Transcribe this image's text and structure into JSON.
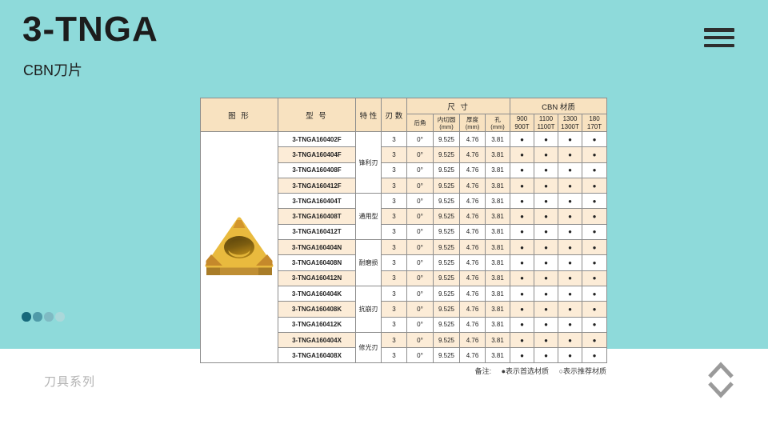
{
  "slide": {
    "title": "3-TNGA",
    "subtitle": "CBN刀片",
    "footer_label": "刀具系列"
  },
  "colors": {
    "background_teal": "#8edada",
    "table_header_bg": "#f8e2c0",
    "table_stripe_bg": "#fcecd7",
    "insert_gold": "#e9ba3e",
    "dot_colors": [
      "#17697b",
      "#4f9aa8",
      "#7fbac3",
      "#abd8da"
    ]
  },
  "pagination": {
    "count": 4,
    "active_index": 0
  },
  "note": {
    "prefix": "备注:",
    "preferred": "●表示首选材质",
    "recommended": "○表示推荐材质"
  },
  "table": {
    "header": {
      "figure": "图  形",
      "model": "型  号",
      "feature": "特 性",
      "edges": "刃 数",
      "dims_group": "尺  寸",
      "cbn_group": "CBN 材质",
      "dims": [
        "后角",
        "内切圆\n(mm)",
        "厚度\n(mm)",
        "孔\n(mm)"
      ],
      "cbn": [
        "900\n900T",
        "1100\n1100T",
        "1300\n1300T",
        "180\n170T"
      ]
    },
    "rows": [
      {
        "model": "3-TNGA160402F",
        "feature": "锋利刃",
        "edges": "3",
        "rear_angle": "0°",
        "inscribed_circle": "9.525",
        "thickness": "4.76",
        "hole": "3.81",
        "cbn": [
          "●",
          "●",
          "●",
          "●"
        ]
      },
      {
        "model": "3-TNGA160404F",
        "feature": "锋利刃",
        "edges": "3",
        "rear_angle": "0°",
        "inscribed_circle": "9.525",
        "thickness": "4.76",
        "hole": "3.81",
        "cbn": [
          "●",
          "●",
          "●",
          "●"
        ]
      },
      {
        "model": "3-TNGA160408F",
        "feature": "锋利刃",
        "edges": "3",
        "rear_angle": "0°",
        "inscribed_circle": "9.525",
        "thickness": "4.76",
        "hole": "3.81",
        "cbn": [
          "●",
          "●",
          "●",
          "●"
        ]
      },
      {
        "model": "3-TNGA160412F",
        "feature": "锋利刃",
        "edges": "3",
        "rear_angle": "0°",
        "inscribed_circle": "9.525",
        "thickness": "4.76",
        "hole": "3.81",
        "cbn": [
          "●",
          "●",
          "●",
          "●"
        ]
      },
      {
        "model": "3-TNGA160404T",
        "feature": "通用型",
        "edges": "3",
        "rear_angle": "0°",
        "inscribed_circle": "9.525",
        "thickness": "4.76",
        "hole": "3.81",
        "cbn": [
          "●",
          "●",
          "●",
          "●"
        ]
      },
      {
        "model": "3-TNGA160408T",
        "feature": "通用型",
        "edges": "3",
        "rear_angle": "0°",
        "inscribed_circle": "9.525",
        "thickness": "4.76",
        "hole": "3.81",
        "cbn": [
          "●",
          "●",
          "●",
          "●"
        ]
      },
      {
        "model": "3-TNGA160412T",
        "feature": "通用型",
        "edges": "3",
        "rear_angle": "0°",
        "inscribed_circle": "9.525",
        "thickness": "4.76",
        "hole": "3.81",
        "cbn": [
          "●",
          "●",
          "●",
          "●"
        ]
      },
      {
        "model": "3-TNGA160404N",
        "feature": "耐磨损",
        "edges": "3",
        "rear_angle": "0°",
        "inscribed_circle": "9.525",
        "thickness": "4.76",
        "hole": "3.81",
        "cbn": [
          "●",
          "●",
          "●",
          "●"
        ]
      },
      {
        "model": "3-TNGA160408N",
        "feature": "耐磨损",
        "edges": "3",
        "rear_angle": "0°",
        "inscribed_circle": "9.525",
        "thickness": "4.76",
        "hole": "3.81",
        "cbn": [
          "●",
          "●",
          "●",
          "●"
        ]
      },
      {
        "model": "3-TNGA160412N",
        "feature": "耐磨损",
        "edges": "3",
        "rear_angle": "0°",
        "inscribed_circle": "9.525",
        "thickness": "4.76",
        "hole": "3.81",
        "cbn": [
          "●",
          "●",
          "●",
          "●"
        ]
      },
      {
        "model": "3-TNGA160404K",
        "feature": "抗崩刃",
        "edges": "3",
        "rear_angle": "0°",
        "inscribed_circle": "9.525",
        "thickness": "4.76",
        "hole": "3.81",
        "cbn": [
          "●",
          "●",
          "●",
          "●"
        ]
      },
      {
        "model": "3-TNGA160408K",
        "feature": "抗崩刃",
        "edges": "3",
        "rear_angle": "0°",
        "inscribed_circle": "9.525",
        "thickness": "4.76",
        "hole": "3.81",
        "cbn": [
          "●",
          "●",
          "●",
          "●"
        ]
      },
      {
        "model": "3-TNGA160412K",
        "feature": "抗崩刃",
        "edges": "3",
        "rear_angle": "0°",
        "inscribed_circle": "9.525",
        "thickness": "4.76",
        "hole": "3.81",
        "cbn": [
          "●",
          "●",
          "●",
          "●"
        ]
      },
      {
        "model": "3-TNGA160404X",
        "feature": "修光刃",
        "edges": "3",
        "rear_angle": "0°",
        "inscribed_circle": "9.525",
        "thickness": "4.76",
        "hole": "3.81",
        "cbn": [
          "●",
          "●",
          "●",
          "●"
        ]
      },
      {
        "model": "3-TNGA160408X",
        "feature": "修光刃",
        "edges": "3",
        "rear_angle": "0°",
        "inscribed_circle": "9.525",
        "thickness": "4.76",
        "hole": "3.81",
        "cbn": [
          "●",
          "●",
          "●",
          "●"
        ]
      }
    ]
  }
}
